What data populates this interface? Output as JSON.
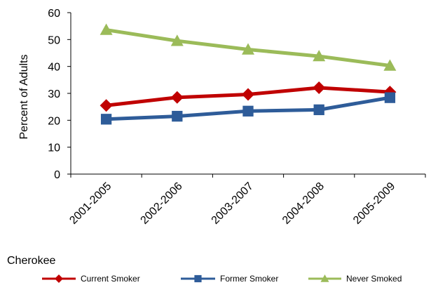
{
  "chart_data": {
    "type": "line",
    "caption": "Cherokee",
    "ylabel": "Percent of Adults",
    "xlabel": "",
    "categories": [
      "2001-2005",
      "2002-2006",
      "2003-2007",
      "2004-2008",
      "2005-2009"
    ],
    "ylim": [
      0,
      60
    ],
    "yticks": [
      "0",
      "10",
      "20",
      "30",
      "40",
      "50",
      "60"
    ],
    "grid": false,
    "legend_position": "bottom",
    "series": [
      {
        "name": "Current Smoker",
        "color": "#C00000",
        "marker": "diamond",
        "values": [
          25.5,
          28.5,
          29.6,
          32.1,
          30.5
        ]
      },
      {
        "name": "Former Smoker",
        "color": "#2E5C99",
        "marker": "square",
        "values": [
          20.4,
          21.5,
          23.4,
          23.9,
          28.4
        ]
      },
      {
        "name": "Never Smoked",
        "color": "#9BBB59",
        "marker": "triangle",
        "values": [
          53.6,
          49.5,
          46.3,
          43.8,
          40.3
        ]
      }
    ]
  }
}
